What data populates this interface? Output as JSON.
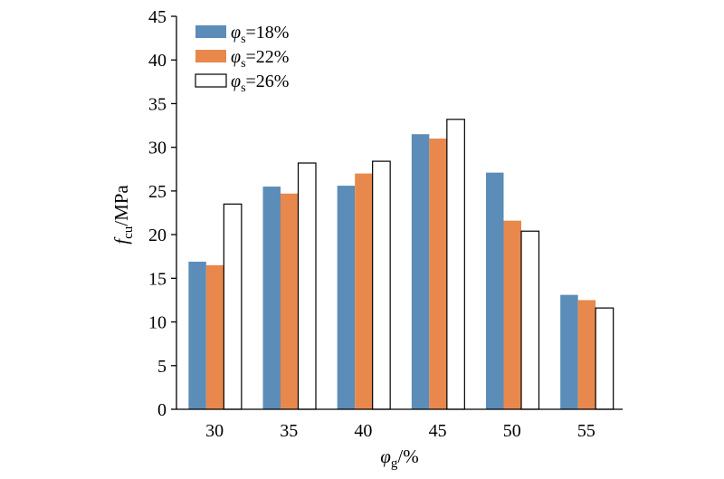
{
  "chart_data": {
    "type": "bar",
    "categories": [
      "30",
      "35",
      "40",
      "45",
      "50",
      "55"
    ],
    "series": [
      {
        "name": "φs=18%",
        "name_base": "φ",
        "name_sub": "s",
        "name_rest": "=18%",
        "color": "#5b8db8",
        "values": [
          16.9,
          25.5,
          25.6,
          31.5,
          27.1,
          13.1
        ]
      },
      {
        "name": "φs=22%",
        "name_base": "φ",
        "name_sub": "s",
        "name_rest": "=22%",
        "color": "#e8884c",
        "values": [
          16.5,
          24.7,
          27.0,
          31.0,
          21.6,
          12.5
        ]
      },
      {
        "name": "φs=26%",
        "name_base": "φ",
        "name_sub": "s",
        "name_rest": "=26%",
        "color": "#ffffff",
        "values": [
          23.5,
          28.2,
          28.4,
          33.2,
          20.4,
          11.6
        ]
      }
    ],
    "xlabel": {
      "base": "φ",
      "sub": "g",
      "rest": "/%"
    },
    "ylabel": {
      "base": "f",
      "sub": "cu",
      "rest": "/MPa"
    },
    "ylim": [
      0,
      45
    ],
    "yticks": [
      "0",
      "5",
      "10",
      "15",
      "20",
      "25",
      "30",
      "35",
      "40",
      "45"
    ],
    "grid": false,
    "legend_position": "top-left"
  }
}
